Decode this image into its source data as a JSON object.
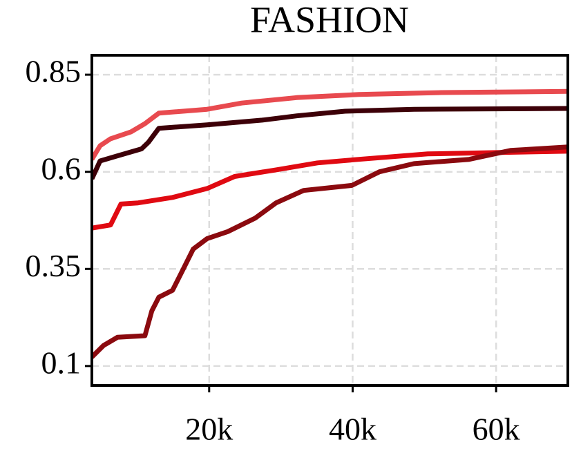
{
  "chart_data": {
    "type": "line",
    "title": "FASHION",
    "xlim": [
      3650,
      70000
    ],
    "ylim": [
      0.05,
      0.9
    ],
    "xticks": [
      {
        "value": 20000,
        "label": "20k"
      },
      {
        "value": 40000,
        "label": "40k"
      },
      {
        "value": 60000,
        "label": "60k"
      }
    ],
    "yticks": [
      0.1,
      0.35,
      0.6,
      0.85
    ],
    "grid": true,
    "series": [
      {
        "color": "#e84a4f",
        "x": [
          3650,
          4800,
          6250,
          9130,
          11050,
          12980,
          19710,
          24520,
          32210,
          40860,
          52400,
          70000
        ],
        "values": [
          0.632,
          0.667,
          0.685,
          0.703,
          0.724,
          0.751,
          0.761,
          0.777,
          0.791,
          0.799,
          0.804,
          0.807
        ]
      },
      {
        "color": "#3d0008",
        "x": [
          3650,
          4800,
          7210,
          10570,
          11530,
          12980,
          19710,
          27400,
          32210,
          38940,
          48550,
          70000
        ],
        "values": [
          0.582,
          0.628,
          0.641,
          0.659,
          0.676,
          0.712,
          0.721,
          0.733,
          0.744,
          0.756,
          0.761,
          0.763
        ]
      },
      {
        "color": "#e00a12",
        "x": [
          3650,
          6250,
          7690,
          10090,
          14900,
          19710,
          23550,
          29320,
          35090,
          40860,
          50470,
          70000
        ],
        "values": [
          0.455,
          0.463,
          0.517,
          0.52,
          0.534,
          0.557,
          0.588,
          0.605,
          0.623,
          0.632,
          0.646,
          0.653
        ]
      },
      {
        "color": "#8b0a0f",
        "x": [
          3650,
          5280,
          7210,
          11050,
          12010,
          12980,
          14900,
          16340,
          17780,
          19710,
          22590,
          26440,
          29320,
          33170,
          39900,
          43740,
          48550,
          56240,
          62010,
          70000
        ],
        "values": [
          0.123,
          0.153,
          0.174,
          0.178,
          0.242,
          0.277,
          0.295,
          0.348,
          0.401,
          0.428,
          0.446,
          0.481,
          0.52,
          0.552,
          0.565,
          0.6,
          0.621,
          0.632,
          0.655,
          0.664
        ]
      }
    ]
  }
}
